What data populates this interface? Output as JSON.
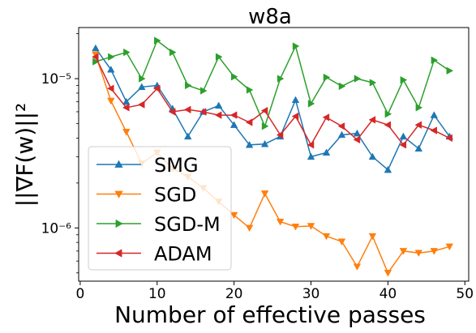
{
  "chart_data": {
    "type": "line",
    "title": "w8a",
    "xlabel": "Number of effective passes",
    "ylabel": "||∇F(w)||²",
    "y_scale": "log",
    "xlim": [
      -0.2,
      50.5
    ],
    "ylim": [
      4.4e-07,
      2.2e-05
    ],
    "x_ticks": [
      0,
      10,
      20,
      30,
      40,
      50
    ],
    "x_tick_labels": [
      "0",
      "10",
      "20",
      "30",
      "40",
      "50"
    ],
    "y_ticks": [
      1e-06,
      1e-05
    ],
    "y_tick_labels": [
      "10⁻⁶",
      "10⁻⁵"
    ],
    "legend_position": "lower-left",
    "grid": false,
    "x": [
      2,
      4,
      6,
      8,
      10,
      12,
      14,
      16,
      18,
      20,
      22,
      24,
      26,
      28,
      30,
      32,
      34,
      36,
      38,
      40,
      42,
      44,
      46,
      48
    ],
    "series": [
      {
        "name": "SMG",
        "color": "#1f77b4",
        "marker": "triangle-up",
        "values": [
          1.6e-05,
          1.15e-05,
          7e-06,
          8.8e-06,
          9e-06,
          6.3e-06,
          4.1e-06,
          6e-06,
          6.6e-06,
          4.9e-06,
          3.6e-06,
          3.65e-06,
          4.1e-06,
          7.2e-06,
          3e-06,
          3.2e-06,
          4.2e-06,
          4.3e-06,
          3e-06,
          2.45e-06,
          4.1e-06,
          3.4e-06,
          5.7e-06,
          4.1e-06
        ]
      },
      {
        "name": "SGD",
        "color": "#ff7f0e",
        "marker": "triangle-down",
        "values": [
          1.45e-05,
          7.1e-06,
          4.4e-06,
          2.7e-06,
          3.2e-06,
          2.5e-06,
          2.2e-06,
          1.85e-06,
          1.5e-06,
          1.22e-06,
          1e-06,
          1.7e-06,
          1.1e-06,
          1.02e-06,
          1.03e-06,
          8.8e-07,
          8.1e-07,
          5.5e-07,
          8.8e-07,
          5e-07,
          7e-07,
          6.8e-07,
          7e-07,
          7.5e-07
        ]
      },
      {
        "name": "SGD-M",
        "color": "#2ca02c",
        "marker": "triangle-right",
        "values": [
          1.3e-05,
          1.4e-05,
          1.5e-05,
          1e-05,
          1.8e-05,
          1.5e-05,
          9e-06,
          8.3e-06,
          1.4e-05,
          1.03e-05,
          8.4e-06,
          4.8e-06,
          1e-05,
          1.65e-05,
          6.8e-06,
          1.02e-05,
          8.9e-06,
          1e-05,
          9.4e-06,
          5.8e-06,
          9.8e-06,
          6.4e-06,
          1.33e-05,
          1.13e-05
        ]
      },
      {
        "name": "ADAM",
        "color": "#d62728",
        "marker": "triangle-left",
        "values": [
          1.4e-05,
          8.6e-06,
          6.4e-06,
          6.7e-06,
          8.6e-06,
          6e-06,
          6.2e-06,
          6e-06,
          5.7e-06,
          5.7e-06,
          5.1e-06,
          6.1e-06,
          4.2e-06,
          5.6e-06,
          3.6e-06,
          5.5e-06,
          4.8e-06,
          3.9e-06,
          5.3e-06,
          4.9e-06,
          3.6e-06,
          4.9e-06,
          4.5e-06,
          4e-06
        ]
      }
    ]
  }
}
